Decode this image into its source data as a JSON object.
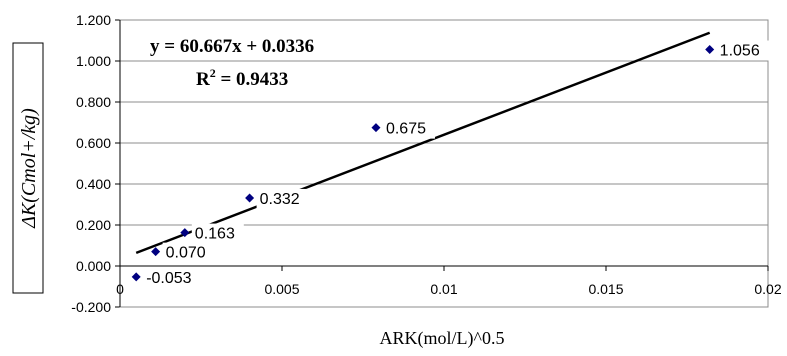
{
  "chart_data": {
    "type": "scatter",
    "xlabel": "ARK(mol/L)^0.5",
    "ylabel": "ΔK(Cmol+/kg)",
    "xlim": [
      0,
      0.02
    ],
    "ylim": [
      -0.2,
      1.2
    ],
    "x_ticks": [
      "0",
      "0.005",
      "0.01",
      "0.015",
      "0.02"
    ],
    "x_tick_values": [
      0,
      0.005,
      0.01,
      0.015,
      0.02
    ],
    "y_ticks": [
      "-0.200",
      "0.000",
      "0.200",
      "0.400",
      "0.600",
      "0.800",
      "1.000",
      "1.200"
    ],
    "y_tick_values": [
      -0.2,
      0,
      0.2,
      0.4,
      0.6,
      0.8,
      1.0,
      1.2
    ],
    "grid": "horizontal",
    "legend": "none",
    "marker_color": "#000080",
    "points": [
      {
        "x": 0.0005,
        "y": -0.053,
        "label": "-0.053"
      },
      {
        "x": 0.0011,
        "y": 0.07,
        "label": "0.070"
      },
      {
        "x": 0.002,
        "y": 0.163,
        "label": "0.163"
      },
      {
        "x": 0.004,
        "y": 0.332,
        "label": "0.332"
      },
      {
        "x": 0.0079,
        "y": 0.675,
        "label": "0.675"
      },
      {
        "x": 0.0182,
        "y": 1.056,
        "label": "1.056"
      }
    ],
    "trendline": {
      "type": "linear",
      "slope": 60.667,
      "intercept": 0.0336,
      "x_range": [
        0.0005,
        0.0182
      ],
      "equation": "y = 60.667x + 0.0336",
      "r2_prefix": "R",
      "r2_power": "2",
      "r2_value": " = 0.9433"
    }
  }
}
